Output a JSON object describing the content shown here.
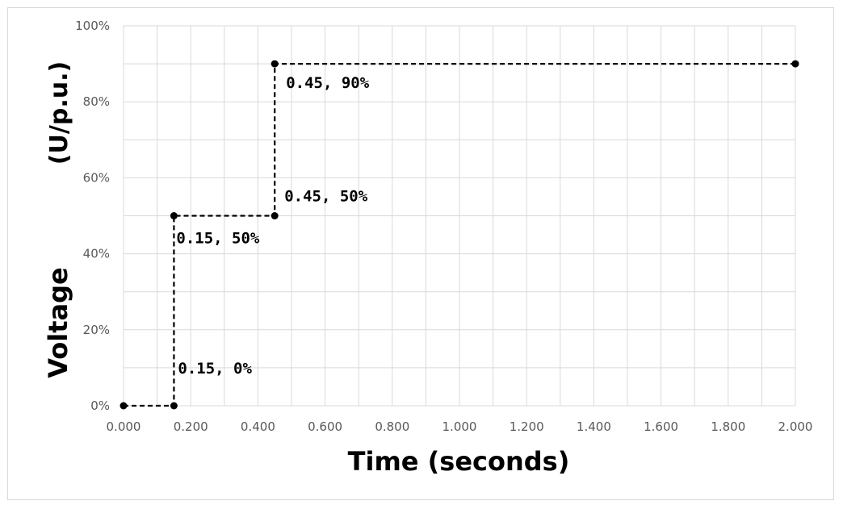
{
  "chart_data": {
    "type": "line",
    "title": "",
    "xlabel": "Time (seconds)",
    "ylabel": "Voltage",
    "ylabel_unit": "(U/p.u.)",
    "xlim": [
      0,
      2
    ],
    "ylim": [
      0,
      100
    ],
    "x_ticks": [
      "0.000",
      "0.200",
      "0.400",
      "0.600",
      "0.800",
      "1.000",
      "1.200",
      "1.400",
      "1.600",
      "1.800",
      "2.000"
    ],
    "y_ticks": [
      "0%",
      "20%",
      "40%",
      "60%",
      "80%",
      "100%"
    ],
    "grid": true,
    "legend": "none",
    "line_style": "dashed",
    "line_color": "#000000",
    "series": [
      {
        "points": [
          {
            "x": 0,
            "y": 0
          },
          {
            "x": 0.15,
            "y": 0
          },
          {
            "x": 0.15,
            "y": 50
          },
          {
            "x": 0.45,
            "y": 50
          },
          {
            "x": 0.45,
            "y": 90
          },
          {
            "x": 2.0,
            "y": 90
          }
        ]
      }
    ],
    "annotations": [
      {
        "text": "0.15, 0%",
        "x": 0.15,
        "y": 0
      },
      {
        "text": "0.15, 50%",
        "x": 0.15,
        "y": 50
      },
      {
        "text": "0.45, 50%",
        "x": 0.45,
        "y": 50
      },
      {
        "text": "0.45, 90%",
        "x": 0.45,
        "y": 90
      }
    ]
  }
}
